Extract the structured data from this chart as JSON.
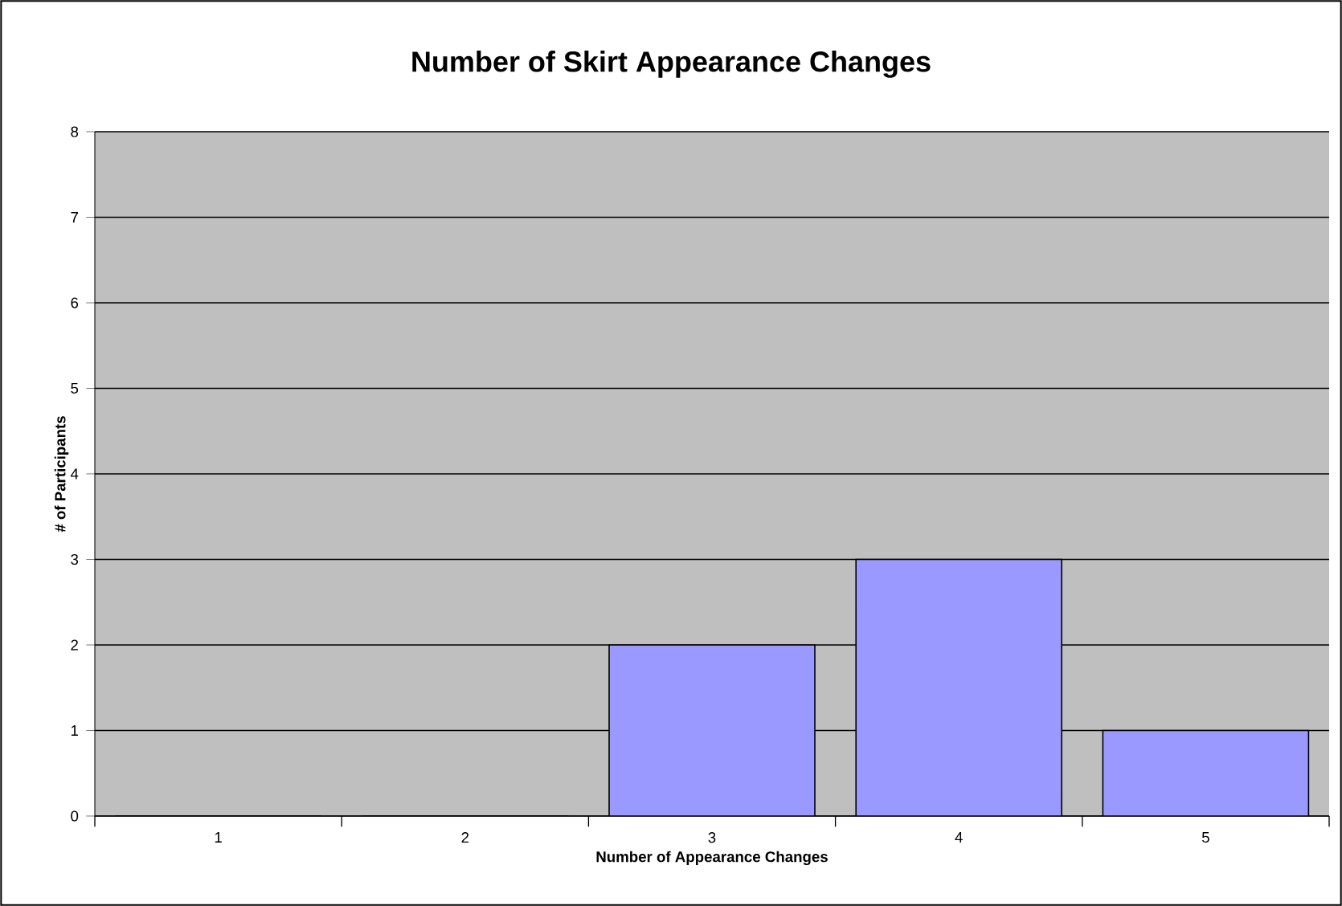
{
  "chart_data": {
    "type": "bar",
    "title": "Number of Skirt Appearance Changes",
    "xlabel": "Number of Appearance Changes",
    "ylabel": "# of Participants",
    "categories": [
      "1",
      "2",
      "3",
      "4",
      "5"
    ],
    "values": [
      0,
      0,
      2,
      3,
      1
    ],
    "color": "#9999ff",
    "ylim": [
      0,
      8
    ],
    "yticks": [
      0,
      1,
      2,
      3,
      4,
      5,
      6,
      7,
      8
    ],
    "grid": "y"
  }
}
